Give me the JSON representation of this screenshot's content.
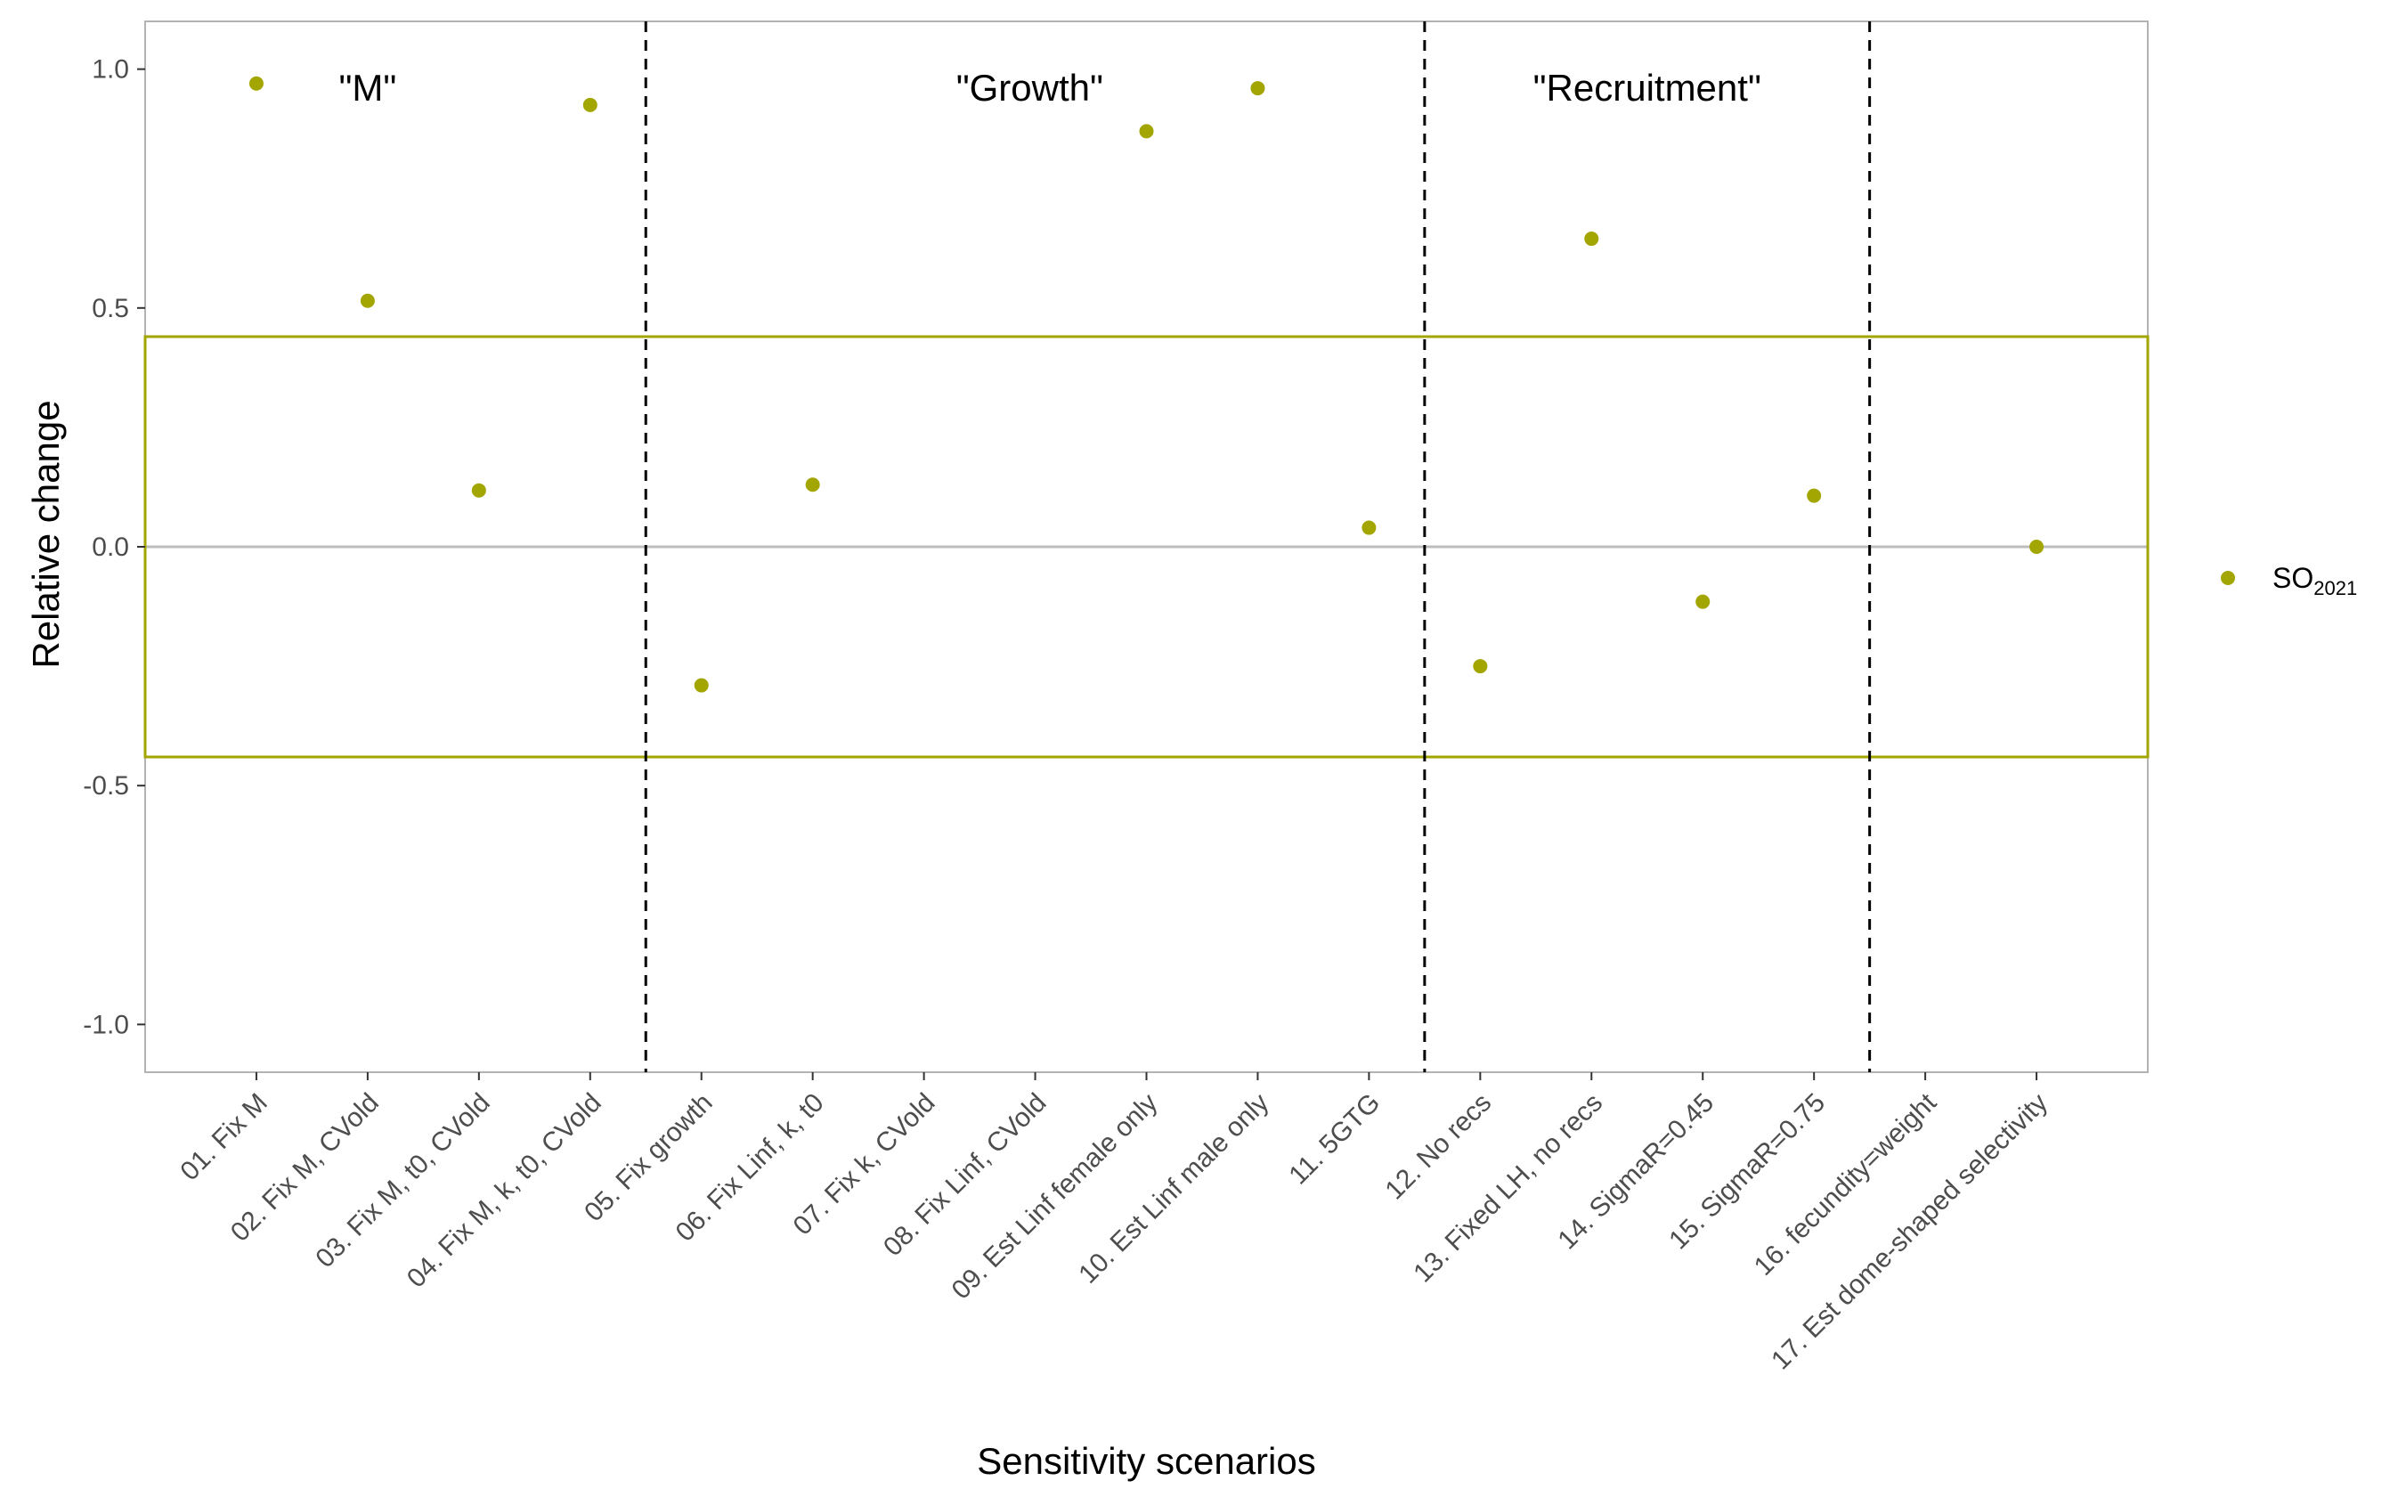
{
  "chart_data": {
    "type": "scatter",
    "xlabel": "Sensitivity scenarios",
    "ylabel": "Relative change",
    "ylim": [
      -1.1,
      1.1
    ],
    "yticks": [
      -1.0,
      -0.5,
      0.0,
      0.5,
      1.0
    ],
    "ytick_labels": [
      "-1.0",
      "-0.5",
      "0.0",
      "0.5",
      "1.0"
    ],
    "grid": false,
    "legend_position": "right",
    "categories": [
      "01. Fix M",
      "02. Fix M, CVold",
      "03. Fix M, t0, CVold",
      "04. Fix M, k, t0, CVold",
      "05. Fix growth",
      "06. Fix Linf, k, t0",
      "07. Fix k, CVold",
      "08. Fix Linf, CVold",
      "09. Est Linf female only",
      "10. Est Linf male only",
      "11. 5GTG",
      "12. No recs",
      "13. Fixed LH, no recs",
      "14. SigmaR=0.45",
      "15. SigmaR=0.75",
      "16. fecundity=weight",
      "17. Est dome-shaped selectivity"
    ],
    "series": [
      {
        "name": "SO",
        "name_subscript": "2021",
        "color": "#A3A500",
        "values": [
          0.97,
          0.515,
          0.118,
          0.925,
          -0.29,
          0.13,
          null,
          null,
          0.87,
          0.96,
          0.04,
          -0.25,
          0.645,
          -0.115,
          0.107,
          null,
          0.0
        ]
      }
    ],
    "reference_box": {
      "x_from": 1,
      "x_to": 17,
      "y_from": -0.44,
      "y_to": 0.44,
      "color": "#A3A500"
    },
    "zero_line": {
      "y": 0.0,
      "color": "#bdbdbd"
    },
    "group_separators": [
      4.5,
      11.5,
      15.5
    ],
    "group_labels": [
      {
        "text": "\"M\"",
        "x": 2
      },
      {
        "text": "\"Growth\"",
        "x": 7.95
      },
      {
        "text": "\"Recruitment\"",
        "x": 13.5
      }
    ],
    "y_label_at": 0.96
  }
}
